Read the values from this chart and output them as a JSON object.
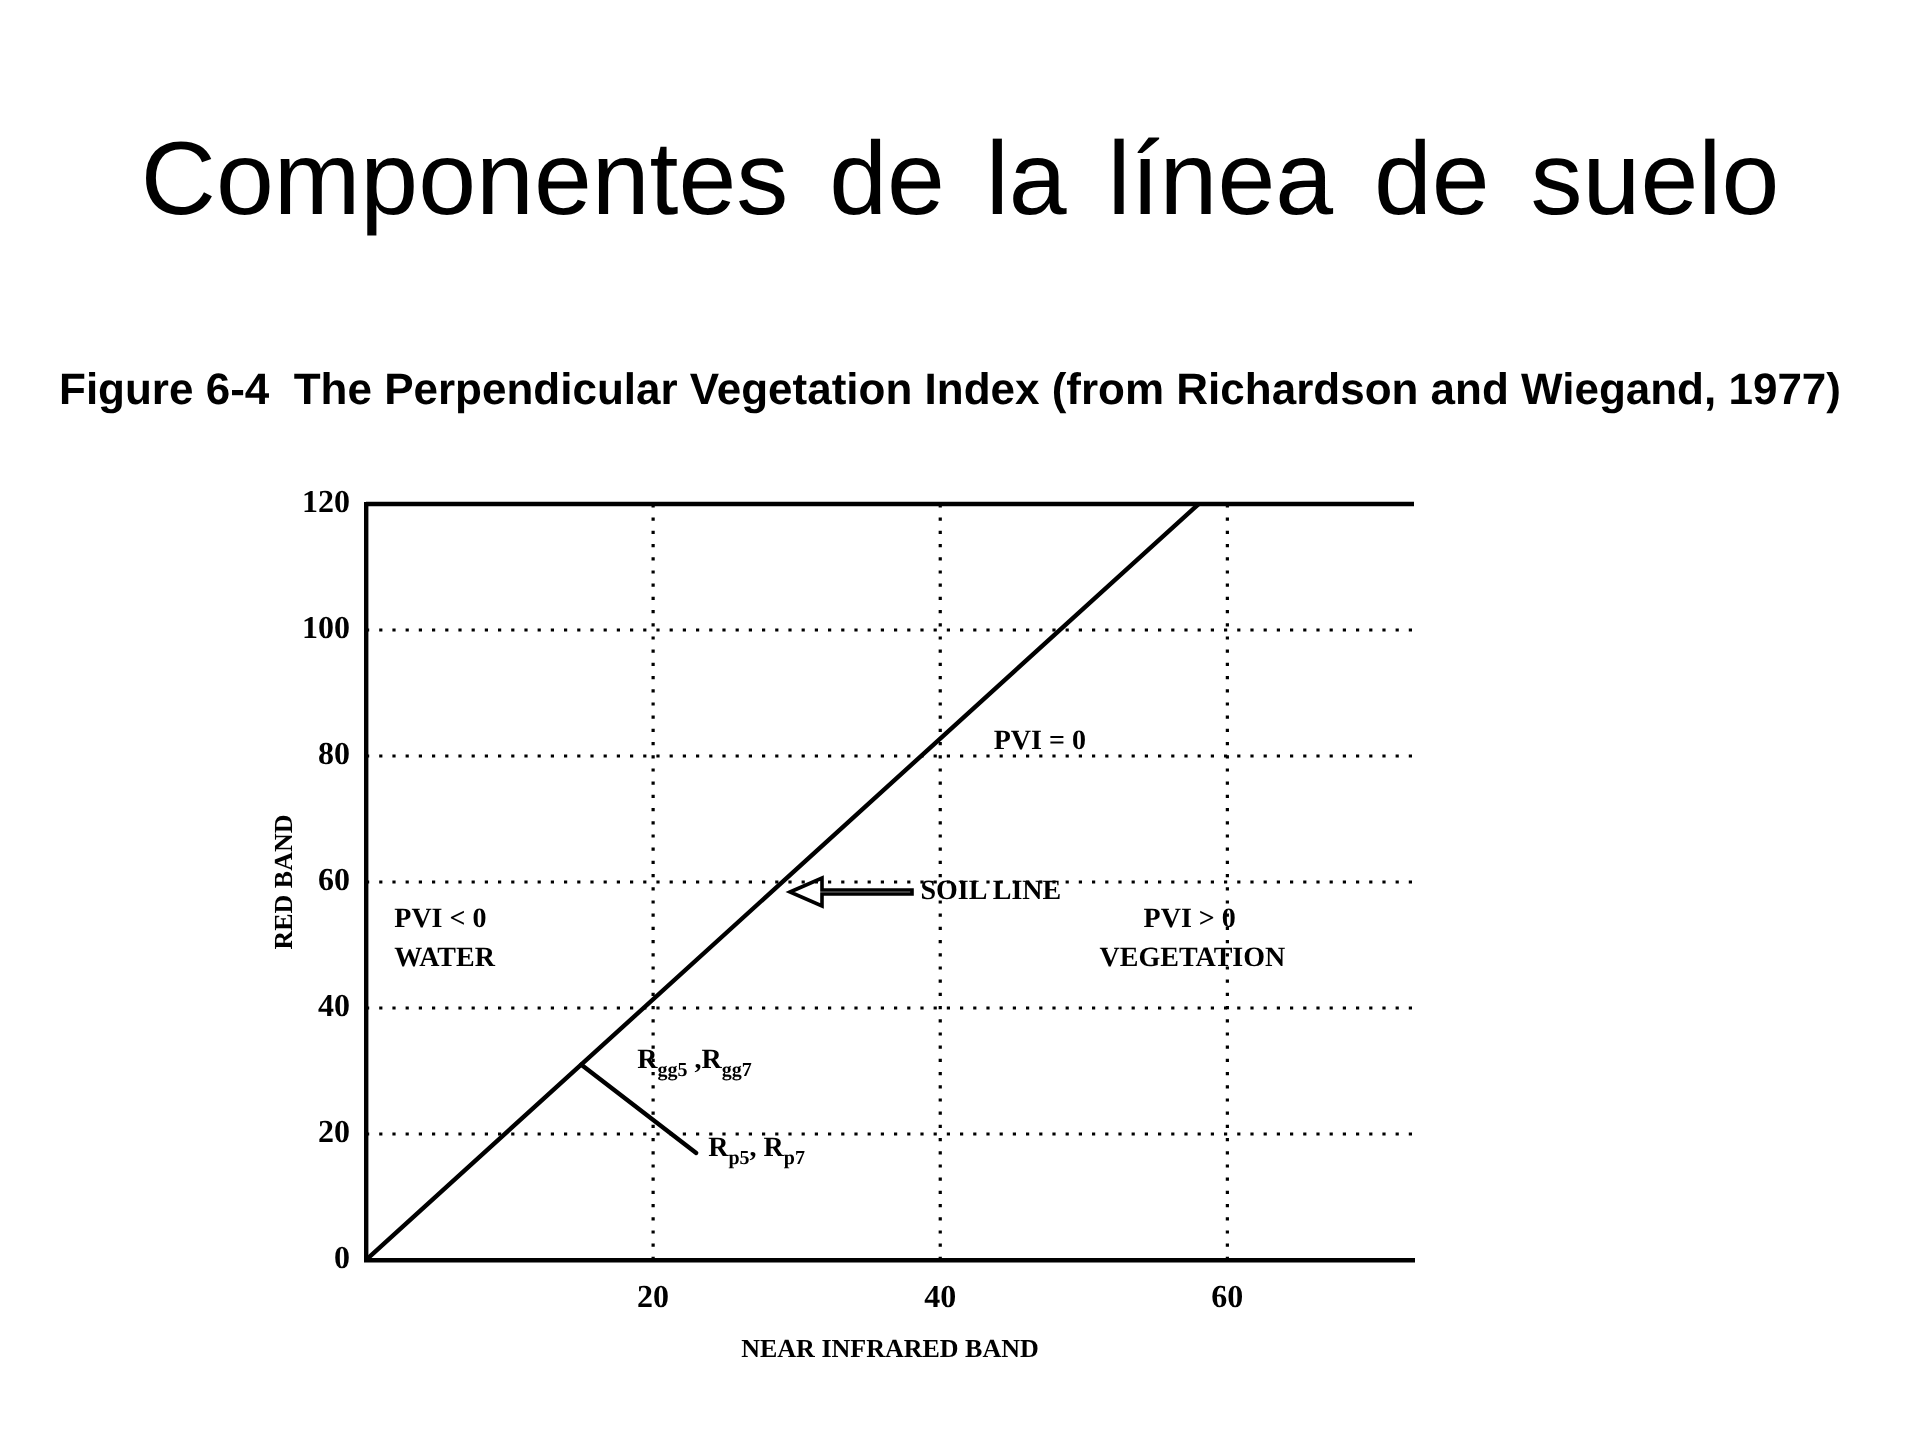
{
  "chart_data": {
    "type": "line",
    "title": "Componentes de la línea de suelo",
    "subtitle": "Figure 6-4  The Perpendicular Vegetation Index (from Richardson and Wiegand, 1977)",
    "xlabel": "NEAR INFRARED BAND",
    "ylabel": "RED BAND",
    "series": [
      {
        "color": "#000000",
        "x": [
          0,
          58
        ],
        "values": [
          0,
          120
        ]
      },
      {
        "color": "#000000",
        "x": [
          15,
          23
        ],
        "values": [
          31,
          17
        ]
      }
    ],
    "xlim": [
      0,
      73
    ],
    "ylim": [
      0,
      120
    ],
    "xticks": [
      20,
      40,
      60
    ],
    "yticks": [
      0,
      20,
      40,
      60,
      80,
      100,
      120
    ],
    "grid": true,
    "marker": "none",
    "line_style": "solid",
    "annotations": [
      "PVI = 0",
      "SOIL LINE",
      "PVI < 0",
      "WATER",
      "PVI > 0",
      "VEGETATION",
      {
        "text": "R$_{gg5}$ ,R$_{gg7}$",
        "x": 15,
        "y": 31
      },
      {
        "text": "R$_{p5}$, R$_{p7}$",
        "x": 23,
        "y": 17
      }
    ]
  }
}
